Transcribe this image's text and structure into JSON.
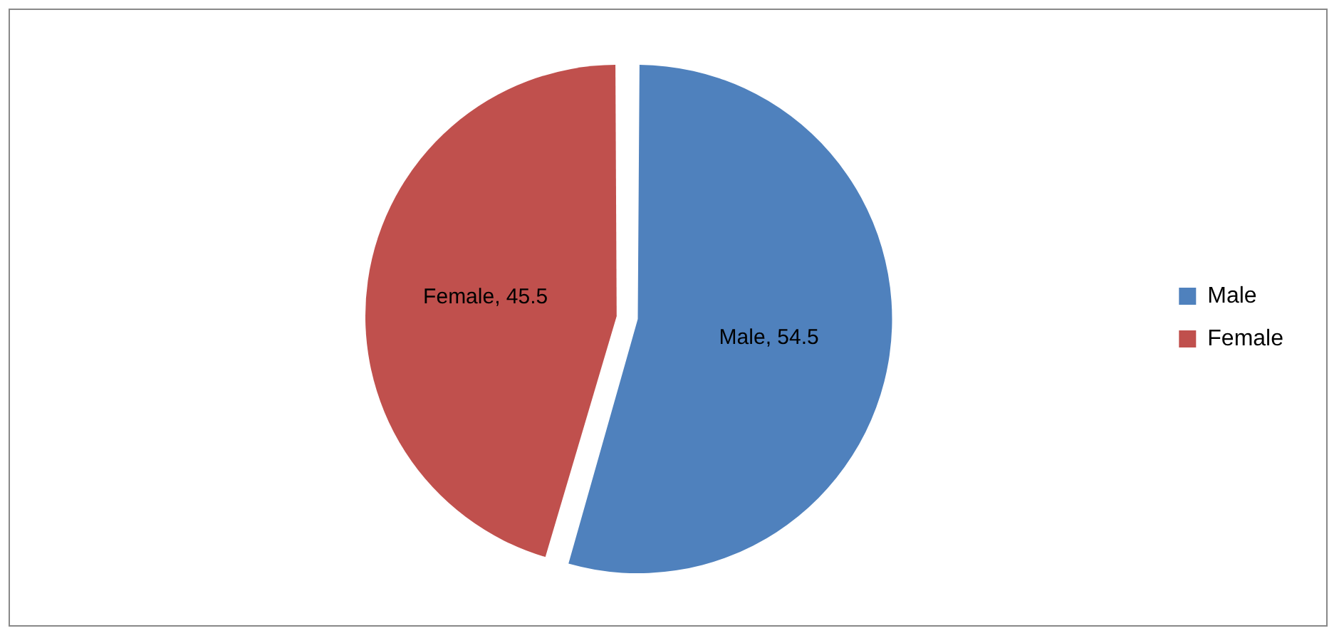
{
  "chart_data": {
    "type": "pie",
    "categories": [
      "Male",
      "Female"
    ],
    "values": [
      54.5,
      45.5
    ],
    "colors": [
      "#4f81bd",
      "#c0504d"
    ],
    "value_labels": [
      "Male, 54.5",
      "Female, 45.5"
    ],
    "legend": "right"
  }
}
